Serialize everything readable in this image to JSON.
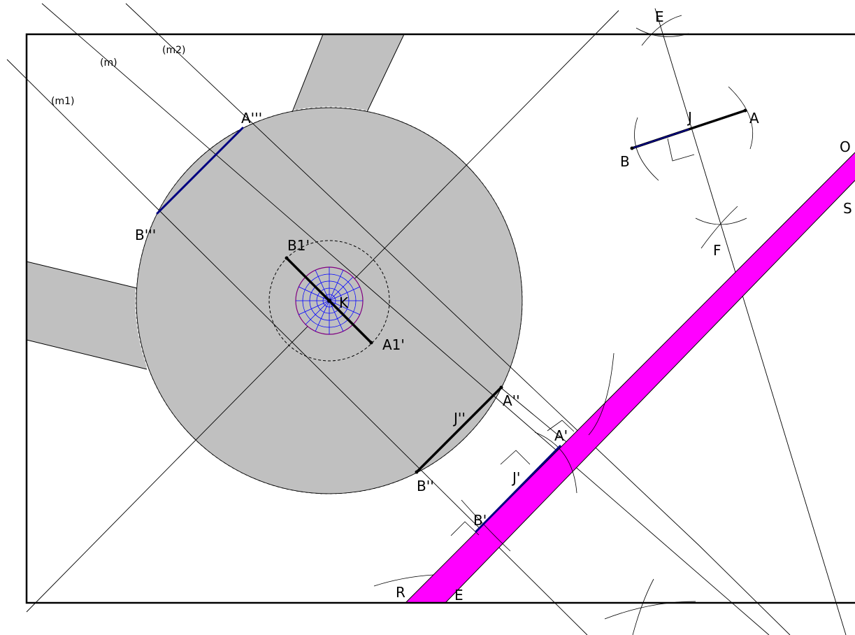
{
  "labels": {
    "m": "(m)",
    "m1": "(m1)",
    "m2": "(m2)",
    "E_top": "E",
    "J": "J",
    "A": "A",
    "B": "B",
    "F": "F",
    "O": "O",
    "S": "S",
    "A3": "A'''",
    "B3": "B'''",
    "B1p": "B1'",
    "K": "K",
    "A1p": "A1'",
    "A2": "A''",
    "J2": "J''",
    "B2": "B''",
    "A1": "A'",
    "J1": "J'",
    "B1": "B'",
    "R": "R",
    "E_bot": "E"
  },
  "colors": {
    "roundabout_fill": "#c0c0c0",
    "road_fill": "#c0c0c0",
    "strip_fill": "#ff00ff",
    "segment_dark_blue": "#000080",
    "segment_black": "#000000",
    "grid_blue": "#0000ff",
    "grid_purple": "#800080",
    "construction_line": "#000000"
  }
}
